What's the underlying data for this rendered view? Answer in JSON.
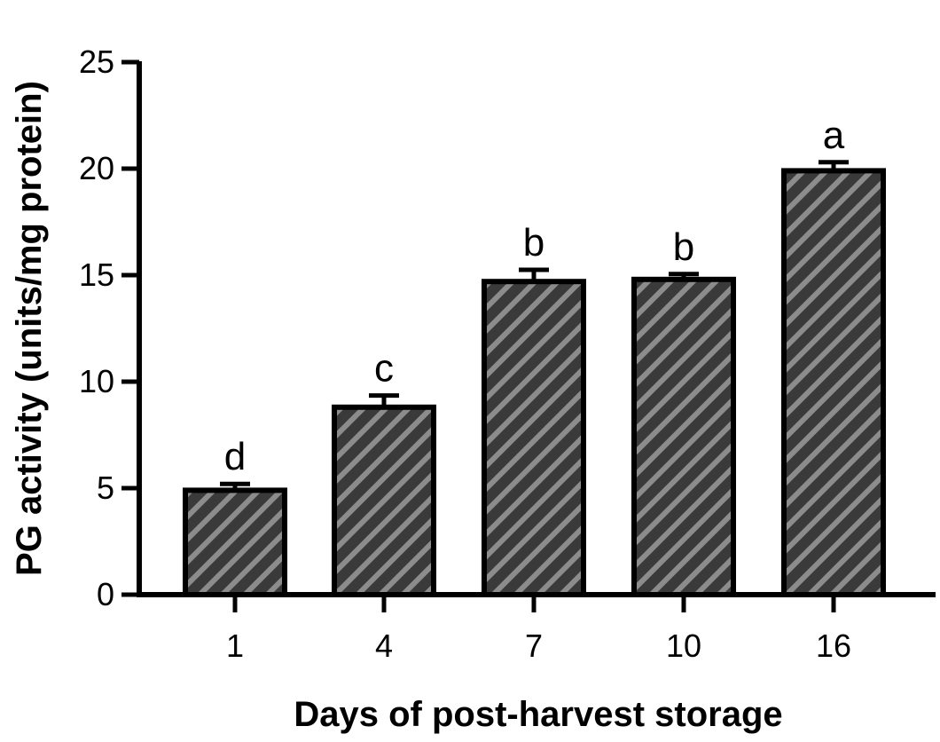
{
  "chart_data": {
    "type": "bar",
    "categories": [
      "1",
      "4",
      "7",
      "10",
      "16"
    ],
    "values": [
      4.9,
      8.8,
      14.7,
      14.8,
      19.9
    ],
    "error": [
      0.3,
      0.55,
      0.55,
      0.25,
      0.4
    ],
    "significance_letters": [
      "d",
      "c",
      "b",
      "b",
      "a"
    ],
    "title": "",
    "xlabel": "Days of post-harvest storage",
    "ylabel": "PG activity (units/mg protein)",
    "ylim": [
      0,
      25
    ],
    "yticks": [
      "0",
      "5",
      "10",
      "15",
      "20",
      "25"
    ],
    "grid": false,
    "legend": "none",
    "colors": {
      "bar_fill": "#3a3a3a",
      "bar_stripe": "#8c8c8c",
      "axis": "#000000"
    },
    "pattern": "diagonal-hatch"
  }
}
